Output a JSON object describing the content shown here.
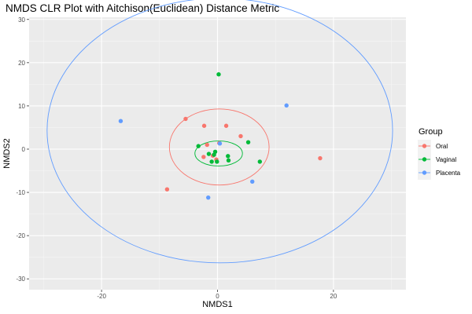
{
  "chart_data": {
    "type": "scatter",
    "title": "NMDS CLR Plot with Aitchison(Euclidean) Distance Metric",
    "xlabel": "NMDS1",
    "ylabel": "NMDS2",
    "xlim": [
      -32.5,
      32.5
    ],
    "ylim": [
      -32.5,
      30.5
    ],
    "x_ticks": [
      -20,
      0,
      20
    ],
    "y_ticks": [
      -30,
      -20,
      -10,
      0,
      10,
      20,
      30
    ],
    "grid": true,
    "legend": {
      "title": "Group",
      "position": "right"
    },
    "series": [
      {
        "name": "Oral",
        "color": "#F8766D",
        "points": [
          [
            -5.5,
            7.0
          ],
          [
            -2.3,
            5.4
          ],
          [
            1.5,
            5.4
          ],
          [
            4.0,
            3.0
          ],
          [
            -1.8,
            1.0
          ],
          [
            0.3,
            1.4
          ],
          [
            -2.4,
            -1.8
          ],
          [
            -0.8,
            -1.5
          ],
          [
            -0.2,
            -2.4
          ],
          [
            -8.7,
            -9.3
          ],
          [
            17.7,
            -2.1
          ]
        ],
        "ellipse": {
          "cx": 0.3,
          "cy": 0.5,
          "rx": 8.6,
          "ry": 8.8
        }
      },
      {
        "name": "Vaginal",
        "color": "#00BA38",
        "points": [
          [
            0.2,
            17.3
          ],
          [
            -3.3,
            0.7
          ],
          [
            5.3,
            1.6
          ],
          [
            -1.5,
            -1.1
          ],
          [
            -0.4,
            -0.6
          ],
          [
            -0.6,
            -1.3
          ],
          [
            1.8,
            -1.6
          ],
          [
            -1.0,
            -2.9
          ],
          [
            -0.1,
            -2.9
          ],
          [
            7.3,
            -2.9
          ],
          [
            1.9,
            -2.6
          ]
        ],
        "ellipse": {
          "cx": 0.2,
          "cy": -1.0,
          "rx": 4.1,
          "ry": 2.9
        }
      },
      {
        "name": "Placenta",
        "color": "#619CFF",
        "points": [
          [
            -16.7,
            6.5
          ],
          [
            11.9,
            10.1
          ],
          [
            0.4,
            1.3
          ],
          [
            6.0,
            -7.5
          ],
          [
            -1.6,
            -11.2
          ]
        ],
        "ellipse": {
          "cx": 0.4,
          "cy": 4.3,
          "rx": 29.8,
          "ry": 30.6
        }
      }
    ]
  }
}
